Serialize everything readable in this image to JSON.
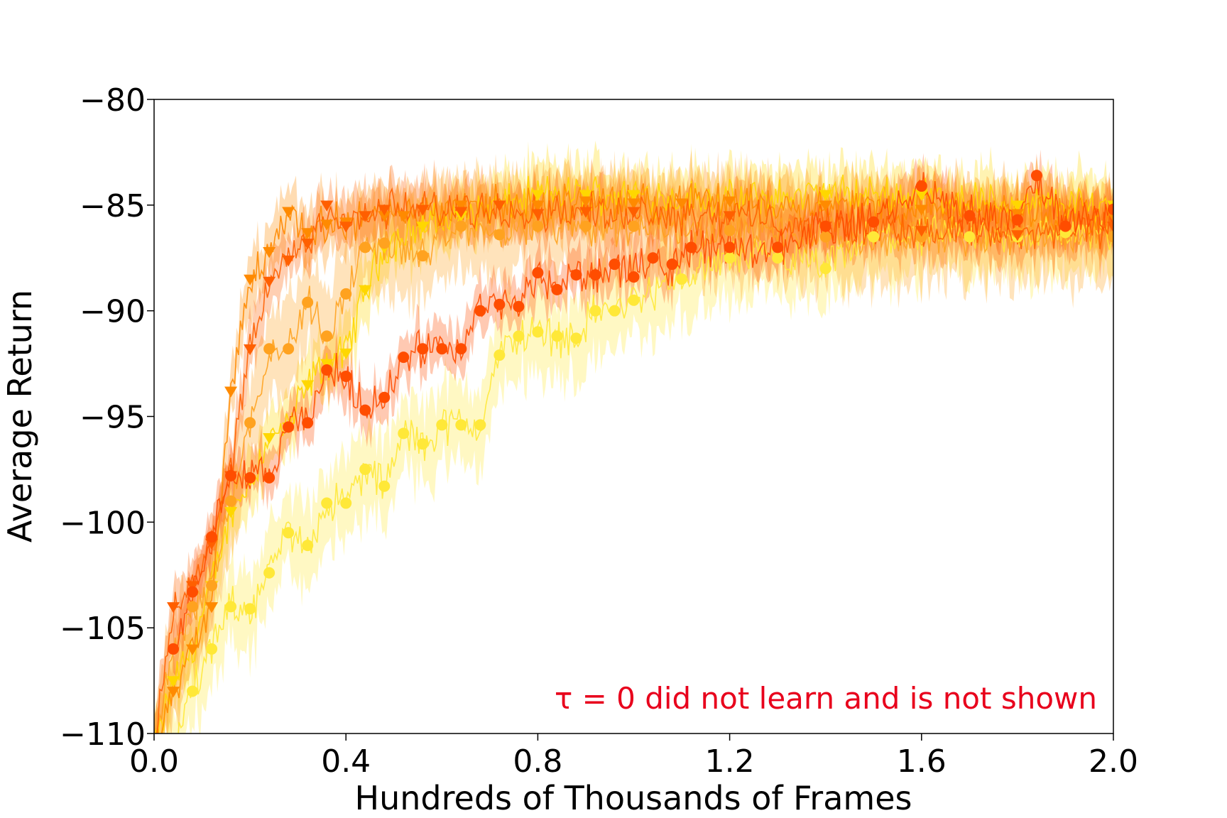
{
  "chart_data": {
    "type": "line",
    "title": "",
    "xlabel": "Hundreds of Thousands of Frames",
    "ylabel": "Average Return",
    "xlim": [
      0.0,
      2.0
    ],
    "ylim": [
      -110,
      -80
    ],
    "xticks": [
      "0.0",
      "0.4",
      "0.8",
      "1.2",
      "1.6",
      "2.0"
    ],
    "yticks": [
      "−80",
      "−85",
      "−90",
      "−95",
      "−100",
      "−105",
      "−110"
    ],
    "grid": false,
    "legend": "none",
    "annotation": "τ = 0 did not learn and is not shown",
    "annotation_color": "#e8001c",
    "series": [
      {
        "color": "#ffd700",
        "marker": "triangle-down",
        "x": [
          0.0,
          0.04,
          0.08,
          0.12,
          0.16,
          0.2,
          0.24,
          0.28,
          0.32,
          0.36,
          0.4,
          0.44,
          0.48,
          0.56,
          0.64,
          0.72,
          0.8,
          0.9,
          1.0,
          1.2,
          1.4,
          1.6,
          1.8,
          2.0
        ],
        "y": [
          -111,
          -107.5,
          -106,
          -103,
          -99.5,
          -98.0,
          -96.0,
          -95.5,
          -93.5,
          -92.5,
          -92.0,
          -89.0,
          -87.0,
          -86.0,
          -85.5,
          -85.0,
          -84.5,
          -84.5,
          -84.5,
          -84.8,
          -84.5,
          -84.5,
          -85.0,
          -85.0
        ],
        "band": 1.4
      },
      {
        "color": "#ffe838",
        "marker": "circle",
        "x": [
          0.0,
          0.04,
          0.08,
          0.12,
          0.16,
          0.2,
          0.24,
          0.28,
          0.32,
          0.36,
          0.4,
          0.44,
          0.48,
          0.52,
          0.56,
          0.6,
          0.64,
          0.68,
          0.72,
          0.76,
          0.8,
          0.84,
          0.88,
          0.92,
          0.96,
          1.0,
          1.1,
          1.2,
          1.3,
          1.4,
          1.5,
          1.6,
          1.7,
          1.8,
          1.9,
          2.0
        ],
        "y": [
          -112,
          -110.5,
          -108.0,
          -106.0,
          -104.0,
          -104.1,
          -102.4,
          -100.5,
          -101.1,
          -99.1,
          -99.1,
          -97.5,
          -98.3,
          -95.8,
          -96.3,
          -95.4,
          -95.4,
          -95.4,
          -92.1,
          -91.2,
          -91.0,
          -91.2,
          -91.3,
          -90.0,
          -90.0,
          -89.5,
          -88.5,
          -87.5,
          -87.5,
          -88.0,
          -86.5,
          -86.5,
          -86.5,
          -86.5,
          -86.3,
          -86.5
        ],
        "band": 2.0
      },
      {
        "color": "#ffa21f",
        "marker": "circle",
        "x": [
          0.0,
          0.04,
          0.08,
          0.12,
          0.16,
          0.2,
          0.24,
          0.28,
          0.32,
          0.36,
          0.4,
          0.44,
          0.48,
          0.56,
          0.64,
          0.72,
          0.8,
          0.9,
          1.0,
          1.2,
          1.4,
          1.6,
          1.8,
          2.0
        ],
        "y": [
          -111,
          -106.0,
          -104.0,
          -103.0,
          -99.0,
          -95.3,
          -91.8,
          -91.8,
          -89.6,
          -91.2,
          -89.2,
          -87.0,
          -86.8,
          -87.4,
          -86.0,
          -86.4,
          -86.0,
          -86.0,
          -86.0,
          -86.2,
          -86.5,
          -86.5,
          -86.3,
          -86.5
        ],
        "band": 2.2
      },
      {
        "color": "#ff8a00",
        "marker": "triangle-down",
        "x": [
          0.0,
          0.04,
          0.08,
          0.12,
          0.16,
          0.2,
          0.24,
          0.28,
          0.32,
          0.36,
          0.4,
          0.44,
          0.48,
          0.52,
          0.56,
          0.64,
          0.72,
          0.8,
          0.9,
          1.0,
          1.1,
          1.2,
          1.4,
          1.6,
          1.8,
          2.0
        ],
        "y": [
          -111,
          -108.0,
          -106.0,
          -104.0,
          -93.8,
          -88.5,
          -87.2,
          -85.3,
          -86.3,
          -85.9,
          -85.8,
          -85.5,
          -85.5,
          -85.5,
          -85.2,
          -85.0,
          -85.0,
          -85.0,
          -84.8,
          -84.9,
          -84.9,
          -84.8,
          -85.0,
          -85.2,
          -85.4,
          -85.5
        ],
        "band": 1.3
      },
      {
        "color": "#ff5f00",
        "marker": "triangle-down",
        "x": [
          0.0,
          0.04,
          0.08,
          0.12,
          0.16,
          0.2,
          0.24,
          0.28,
          0.32,
          0.36,
          0.4,
          0.44,
          0.48,
          0.56,
          0.64,
          0.72,
          0.8,
          0.9,
          1.0,
          1.2,
          1.4,
          1.6,
          1.8,
          2.0
        ],
        "y": [
          -111,
          -104.0,
          -103.0,
          -101.0,
          -97.8,
          -91.8,
          -88.6,
          -87.6,
          -86.8,
          -85.0,
          -86.0,
          -85.5,
          -85.2,
          -85.2,
          -85.3,
          -85.0,
          -85.4,
          -85.3,
          -85.3,
          -85.5,
          -86.0,
          -86.2,
          -86.4,
          -86.0
        ],
        "band": 1.2
      },
      {
        "color": "#ff4d00",
        "marker": "circle",
        "x": [
          0.04,
          0.08,
          0.12,
          0.16,
          0.2,
          0.24,
          0.28,
          0.32,
          0.36,
          0.4,
          0.44,
          0.48,
          0.52,
          0.56,
          0.6,
          0.64,
          0.68,
          0.72,
          0.76,
          0.8,
          0.84,
          0.88,
          0.92,
          0.96,
          1.0,
          1.04,
          1.08,
          1.12,
          1.2,
          1.3,
          1.4,
          1.5,
          1.6,
          1.7,
          1.8,
          1.84,
          1.9,
          2.0
        ],
        "y": [
          -106.0,
          -103.3,
          -100.7,
          -97.8,
          -97.9,
          -97.9,
          -95.5,
          -95.3,
          -92.8,
          -93.1,
          -94.7,
          -94.1,
          -92.2,
          -91.8,
          -91.8,
          -91.8,
          -90.0,
          -89.7,
          -89.8,
          -88.2,
          -89.0,
          -88.3,
          -88.3,
          -87.8,
          -88.4,
          -87.5,
          -87.8,
          -87.0,
          -87.0,
          -87.0,
          -86.0,
          -85.8,
          -84.1,
          -85.5,
          -85.7,
          -83.6,
          -86.0,
          -85.2
        ],
        "band": 1.1
      }
    ]
  }
}
